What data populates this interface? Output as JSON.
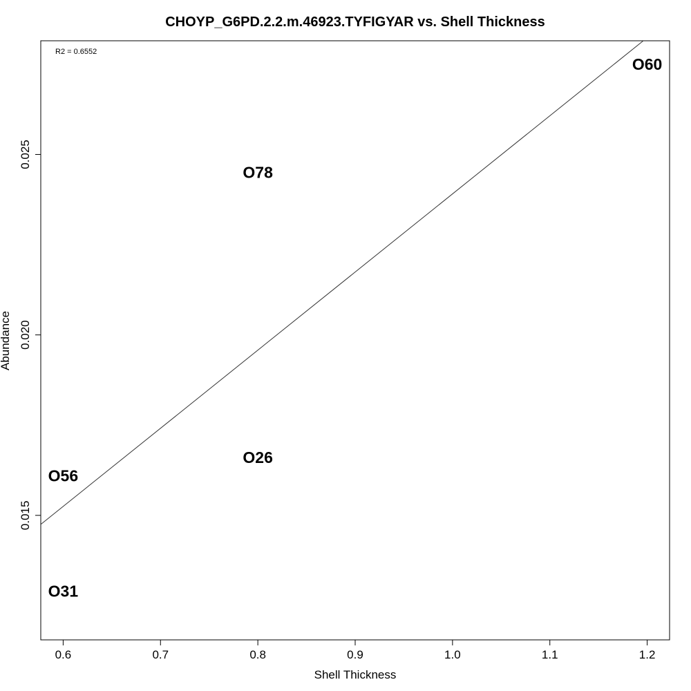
{
  "chart_data": {
    "type": "scatter",
    "title": "CHOYP_G6PD.2.2.m.46923.TYFIGYAR vs. Shell Thickness",
    "xlabel": "Shell Thickness",
    "ylabel": "Abundance",
    "annotation": "R2 = 0.6552",
    "xlim": [
      0.577,
      1.223
    ],
    "ylim": [
      0.01155,
      0.02815
    ],
    "x_ticks": [
      0.6,
      0.7,
      0.8,
      0.9,
      1.0,
      1.1,
      1.2
    ],
    "x_tick_labels": [
      "0.6",
      "0.7",
      "0.8",
      "0.9",
      "1.0",
      "1.1",
      "1.2"
    ],
    "y_ticks": [
      0.015,
      0.02,
      0.025
    ],
    "y_tick_labels": [
      "0.015",
      "0.020",
      "0.025"
    ],
    "grid": false,
    "legend": "none",
    "points": [
      {
        "label": "O60",
        "x": 1.2,
        "y": 0.0275
      },
      {
        "label": "O78",
        "x": 0.8,
        "y": 0.0245
      },
      {
        "label": "O26",
        "x": 0.8,
        "y": 0.0166
      },
      {
        "label": "O56",
        "x": 0.6,
        "y": 0.0161
      },
      {
        "label": "O31",
        "x": 0.6,
        "y": 0.0129
      }
    ],
    "regression_line": {
      "x": [
        0.577,
        1.196
      ],
      "y": [
        0.01475,
        0.02815
      ]
    },
    "colors": {
      "text": "#000000",
      "line": "#333333",
      "axis": "#000000"
    }
  }
}
